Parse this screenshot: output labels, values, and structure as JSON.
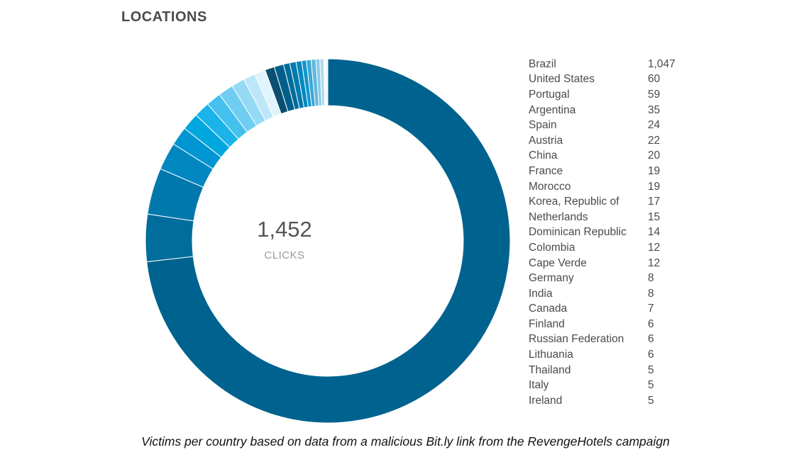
{
  "header": {
    "title": "LOCATIONS"
  },
  "center": {
    "total": "1,452",
    "label": "CLICKS"
  },
  "caption": "Victims per country based on data from a malicious Bit.ly link from the RevengeHotels campaign",
  "colors": {
    "dominant": "#00628e",
    "palette": [
      "#006d9c",
      "#0078ac",
      "#0087c0",
      "#0096d1",
      "#00a7df",
      "#1bb4ea",
      "#44c1ee",
      "#6fcdf1",
      "#95daf5",
      "#bde7f8",
      "#e1f3fb",
      "#0a4e70",
      "#005f8a",
      "#006c9b",
      "#007aac",
      "#0088bd",
      "#1496cc",
      "#3aa7d6",
      "#62b8de",
      "#8ac9e6",
      "#b0daee",
      "#f2f9fd"
    ]
  },
  "chart_data": {
    "type": "pie",
    "style": "donut",
    "title": "LOCATIONS",
    "total": 1452,
    "categories": [
      "Brazil",
      "United States",
      "Portugal",
      "Argentina",
      "Spain",
      "Austria",
      "China",
      "France",
      "Morocco",
      "Korea, Republic of",
      "Netherlands",
      "Dominican Republic",
      "Colombia",
      "Cape Verde",
      "Germany",
      "India",
      "Canada",
      "Finland",
      "Russian Federation",
      "Lithuania",
      "Thailand",
      "Italy",
      "Ireland"
    ],
    "values": [
      1047,
      60,
      59,
      35,
      24,
      22,
      20,
      19,
      19,
      17,
      15,
      14,
      12,
      12,
      8,
      8,
      7,
      6,
      6,
      6,
      5,
      5,
      5
    ],
    "value_labels": [
      "1,047",
      "60",
      "59",
      "35",
      "24",
      "22",
      "20",
      "19",
      "19",
      "17",
      "15",
      "14",
      "12",
      "12",
      "8",
      "8",
      "7",
      "6",
      "6",
      "6",
      "5",
      "5",
      "5"
    ],
    "legend_position": "right"
  }
}
